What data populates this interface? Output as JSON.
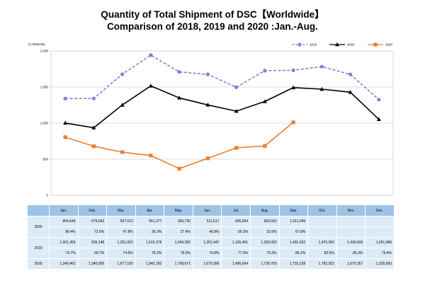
{
  "title": {
    "line1": "Quantity of Total Shipment of DSC【Worldwide】",
    "line2": "Comparison of 2018, 2019 and 2020 :Jan.-Aug."
  },
  "colors": {
    "2018": "#7f7fd9",
    "2019": "#000000",
    "2020": "#ed7d31",
    "grid": "#d0d0d0",
    "table_header": "#9dc3e6",
    "table_cell": "#ddebf7"
  },
  "chart_data": {
    "type": "line",
    "unit_label": "(1,000units)",
    "categories": [
      "Jan.",
      "Feb.",
      "Mar.",
      "Apr.",
      "May.",
      "Jun.",
      "Jul.",
      "Aug.",
      "Sep.",
      "Oct.",
      "Nov.",
      "Dec."
    ],
    "ylim": [
      0,
      2000
    ],
    "yticks": [
      0,
      500,
      1000,
      1500,
      2000
    ],
    "ytick_labels": [
      "0",
      "500",
      "1,000",
      "1,500",
      "2,000"
    ],
    "grid": true,
    "legend_position": "top-right",
    "series": [
      {
        "name": "2018",
        "style": "dashed",
        "marker": "circle",
        "values": [
          1340.462,
          1340.995,
          1677.15,
          1942.182,
          1708.671,
          1675.096,
          1496.604,
          1726.76,
          1732.128,
          1782.353,
          1675.357,
          1325.583
        ]
      },
      {
        "name": "2019",
        "style": "solid",
        "marker": "triangle",
        "values": [
          1001.356,
          935.148,
          1251.002,
          1515.378,
          1349.282,
          1252.447,
          1165.401,
          1300.093,
          1491.932,
          1470.392,
          1428.436,
          1051.988
        ]
      },
      {
        "name": "2020",
        "style": "solid",
        "marker": "square",
        "values": [
          804.646,
          679.043,
          597.513,
          551.377,
          369.73,
          511.517,
          656.604,
          683.933,
          1011.049,
          null,
          null,
          null
        ]
      }
    ]
  },
  "table": {
    "headers": [
      "Jan.",
      "Feb.",
      "Mar.",
      "Apr.",
      "May.",
      "Jun.",
      "Jul.",
      "Aug.",
      "Sep.",
      "Oct.",
      "Nov.",
      "Dec."
    ],
    "rows": [
      {
        "year": "2020",
        "qty": [
          "804,646",
          "679,043",
          "597,513",
          "551,377",
          "369,730",
          "511,517",
          "656,604",
          "683,933",
          "1,011,049",
          "",
          "",
          ""
        ],
        "pct": [
          "80.4%",
          "72.6%",
          "47.8%",
          "36.3%",
          "27.4%",
          "40.8%",
          "56.3%",
          "52.6%",
          "67.8%",
          "",
          "",
          ""
        ]
      },
      {
        "year": "2019",
        "qty": [
          "1,001,356",
          "935,148",
          "1,251,002",
          "1,515,378",
          "1,349,282",
          "1,252,447",
          "1,165,401",
          "1,300,093",
          "1,491,932",
          "1,470,392",
          "1,428,436",
          "1,051,988"
        ],
        "pct": [
          "74.7%",
          "69.7%",
          "74.6%",
          "78.2%",
          "79.0%",
          "74.8%",
          "77.9%",
          "75.3%",
          "86.1%",
          "82.5%",
          "85.3%",
          "79.4%"
        ]
      },
      {
        "year": "2018",
        "qty": [
          "1,340,462",
          "1,340,995",
          "1,677,150",
          "1,942,182",
          "1,708,671",
          "1,675,096",
          "1,496,604",
          "1,726,760",
          "1,732,128",
          "1,782,353",
          "1,675,357",
          "1,325,583"
        ]
      }
    ]
  }
}
